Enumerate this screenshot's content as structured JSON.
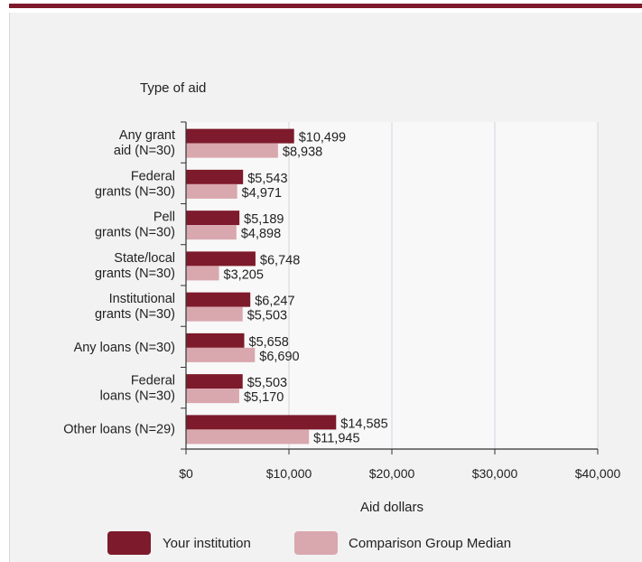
{
  "colors": {
    "accent": "#7d1a2b",
    "comparison": "#d9a7ae"
  },
  "chart_data": {
    "type": "bar",
    "orientation": "horizontal",
    "ylabel": "Type of aid",
    "xlabel": "Aid dollars",
    "xlim": [
      0,
      40000
    ],
    "xticks": [
      0,
      10000,
      20000,
      30000,
      40000
    ],
    "xtick_labels": [
      "$0",
      "$10,000",
      "$20,000",
      "$30,000",
      "$40,000"
    ],
    "grid": true,
    "legend_placement": "bottom",
    "categories": [
      [
        "Any grant",
        "aid (N=30)"
      ],
      [
        "Federal",
        "grants (N=30)"
      ],
      [
        "Pell",
        "grants (N=30)"
      ],
      [
        "State/local",
        "grants (N=30)"
      ],
      [
        "Institutional",
        "grants (N=30)"
      ],
      [
        "Any loans (N=30)"
      ],
      [
        "Federal",
        "loans (N=30)"
      ],
      [
        "Other loans (N=29)"
      ]
    ],
    "series": [
      {
        "name": "Your institution",
        "color": "#7d1a2b",
        "values": [
          10499,
          5543,
          5189,
          6748,
          6247,
          5658,
          5503,
          14585
        ],
        "labels": [
          "$10,499",
          "$5,543",
          "$5,189",
          "$6,748",
          "$6,247",
          "$5,658",
          "$5,503",
          "$14,585"
        ]
      },
      {
        "name": "Comparison Group Median",
        "color": "#d9a7ae",
        "values": [
          8938,
          4971,
          4898,
          3205,
          5503,
          6690,
          5170,
          11945
        ],
        "labels": [
          "$8,938",
          "$4,971",
          "$4,898",
          "$3,205",
          "$5,503",
          "$6,690",
          "$5,170",
          "$11,945"
        ]
      }
    ]
  }
}
